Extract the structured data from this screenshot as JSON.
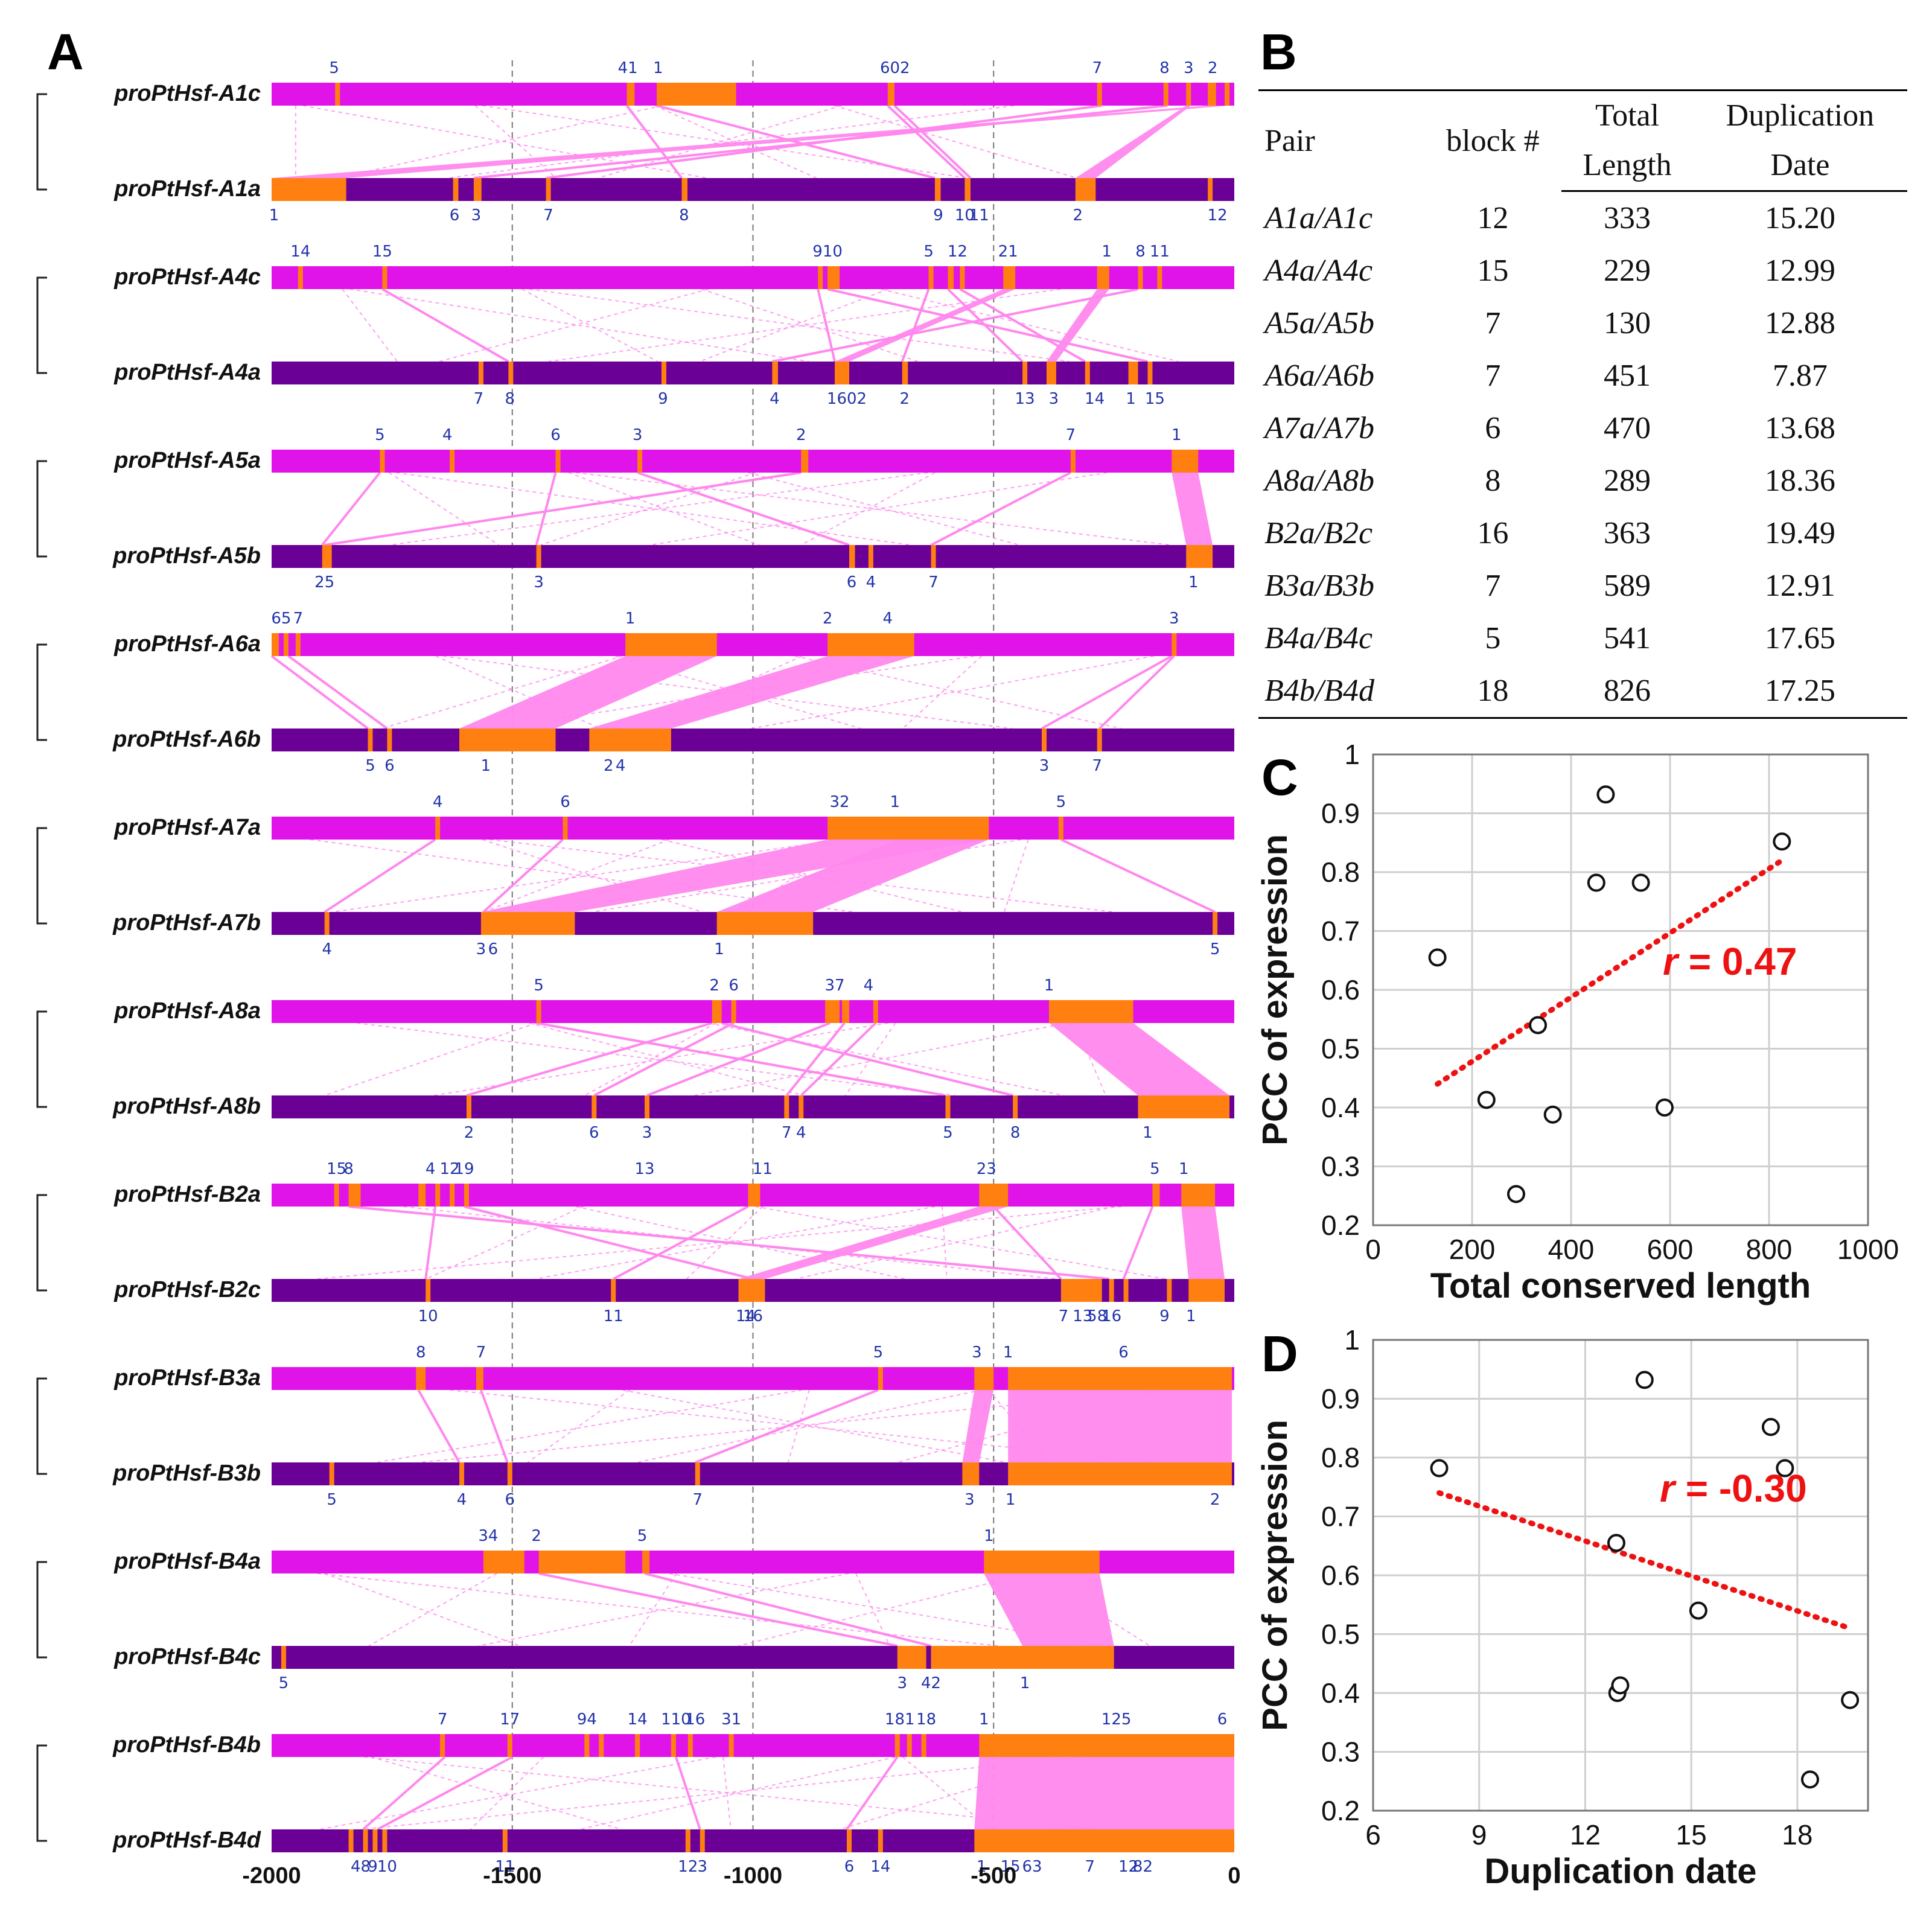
{
  "panels": {
    "a": "A",
    "b": "B",
    "c": "C",
    "d": "D"
  },
  "colors": {
    "upper_bar": "#e014e8",
    "lower_bar": "#6b0096",
    "block": "#ff8010",
    "link": "#ff88ee",
    "number": "#2233aa",
    "trend": "#ee1111"
  },
  "panel_a": {
    "axis_ticks": [
      "-2000",
      "-1500",
      "-1000",
      "-500",
      "0"
    ],
    "pairs": [
      {
        "top": "proPtHsf-A1c",
        "bottom": "proPtHsf-A1a"
      },
      {
        "top": "proPtHsf-A4c",
        "bottom": "proPtHsf-A4a"
      },
      {
        "top": "proPtHsf-A5a",
        "bottom": "proPtHsf-A5b"
      },
      {
        "top": "proPtHsf-A6a",
        "bottom": "proPtHsf-A6b"
      },
      {
        "top": "proPtHsf-A7a",
        "bottom": "proPtHsf-A7b"
      },
      {
        "top": "proPtHsf-A8a",
        "bottom": "proPtHsf-A8b"
      },
      {
        "top": "proPtHsf-B2a",
        "bottom": "proPtHsf-B2c"
      },
      {
        "top": "proPtHsf-B3a",
        "bottom": "proPtHsf-B3b"
      },
      {
        "top": "proPtHsf-B4a",
        "bottom": "proPtHsf-B4c"
      },
      {
        "top": "proPtHsf-B4b",
        "bottom": "proPtHsf-B4d"
      }
    ]
  },
  "table_b": {
    "headers": {
      "pair": "Pair",
      "block": "block #",
      "total_1": "Total",
      "total_2": "Length",
      "dup_1": "Duplication",
      "dup_2": "Date"
    },
    "rows": [
      {
        "pair": "A1a/A1c",
        "block": "12",
        "length": "333",
        "date": "15.20"
      },
      {
        "pair": "A4a/A4c",
        "block": "15",
        "length": "229",
        "date": "12.99"
      },
      {
        "pair": "A5a/A5b",
        "block": "7",
        "length": "130",
        "date": "12.88"
      },
      {
        "pair": "A6a/A6b",
        "block": "7",
        "length": "451",
        "date": "7.87"
      },
      {
        "pair": "A7a/A7b",
        "block": "6",
        "length": "470",
        "date": "13.68"
      },
      {
        "pair": "A8a/A8b",
        "block": "8",
        "length": "289",
        "date": "18.36"
      },
      {
        "pair": "B2a/B2c",
        "block": "16",
        "length": "363",
        "date": "19.49"
      },
      {
        "pair": "B3a/B3b",
        "block": "7",
        "length": "589",
        "date": "12.91"
      },
      {
        "pair": "B4a/B4c",
        "block": "5",
        "length": "541",
        "date": "17.65"
      },
      {
        "pair": "B4b/B4d",
        "block": "18",
        "length": "826",
        "date": "17.25"
      }
    ]
  },
  "chart_data": [
    {
      "id": "C",
      "type": "scatter",
      "xlabel": "Total conserved length",
      "ylabel": "PCC of expression",
      "xlim": [
        0,
        1000
      ],
      "ylim": [
        0.2,
        1
      ],
      "xticks": [
        0,
        200,
        400,
        600,
        800,
        1000
      ],
      "yticks": [
        0.2,
        0.3,
        0.4,
        0.5,
        0.6,
        0.7,
        0.8,
        0.9,
        1
      ],
      "ytick_labels": [
        "0.2",
        "0.3",
        "0.4",
        "0.5",
        "0.6",
        "0.7",
        "0.8",
        "0.9",
        "1"
      ],
      "points": [
        [
          130,
          0.655
        ],
        [
          229,
          0.413
        ],
        [
          289,
          0.253
        ],
        [
          333,
          0.54
        ],
        [
          363,
          0.388
        ],
        [
          451,
          0.782
        ],
        [
          470,
          0.932
        ],
        [
          541,
          0.782
        ],
        [
          589,
          0.4
        ],
        [
          826,
          0.852
        ]
      ],
      "trendline": [
        [
          130,
          0.44
        ],
        [
          826,
          0.82
        ]
      ],
      "annotation": {
        "r": "r",
        "text": " = 0.47"
      }
    },
    {
      "id": "D",
      "type": "scatter",
      "xlabel": "Duplication date",
      "ylabel": "PCC of expression",
      "xlim": [
        6,
        20
      ],
      "ylim": [
        0.2,
        1
      ],
      "xticks": [
        6,
        9,
        12,
        15,
        18
      ],
      "yticks": [
        0.2,
        0.3,
        0.4,
        0.5,
        0.6,
        0.7,
        0.8,
        0.9,
        1
      ],
      "ytick_labels": [
        "0.2",
        "0.3",
        "0.4",
        "0.5",
        "0.6",
        "0.7",
        "0.8",
        "0.9",
        "1"
      ],
      "points": [
        [
          7.87,
          0.782
        ],
        [
          12.88,
          0.655
        ],
        [
          12.91,
          0.4
        ],
        [
          12.99,
          0.413
        ],
        [
          13.68,
          0.932
        ],
        [
          15.2,
          0.54
        ],
        [
          17.25,
          0.852
        ],
        [
          17.65,
          0.782
        ],
        [
          18.36,
          0.253
        ],
        [
          19.49,
          0.388
        ]
      ],
      "trendline": [
        [
          7.87,
          0.74
        ],
        [
          19.49,
          0.51
        ]
      ],
      "annotation": {
        "r": "r",
        "text": " = -0.30"
      }
    }
  ]
}
